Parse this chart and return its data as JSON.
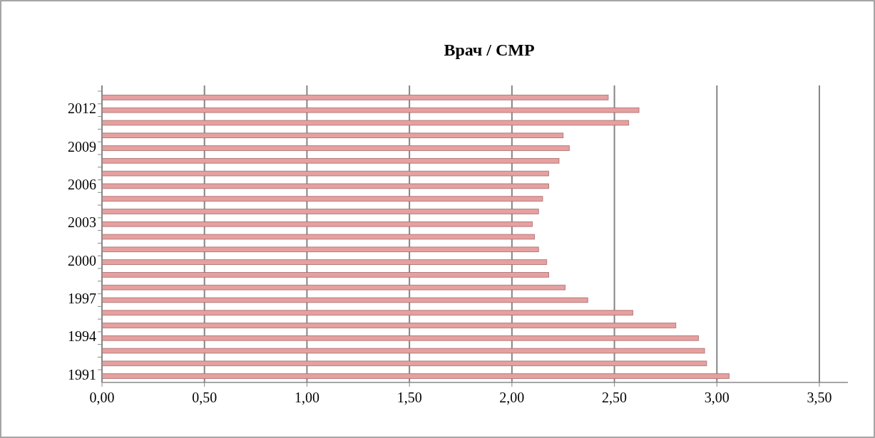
{
  "chart_data": {
    "type": "bar",
    "orientation": "horizontal",
    "title": "Врач / СМР",
    "categories": [
      null,
      "2012",
      null,
      null,
      "2009",
      null,
      null,
      "2006",
      null,
      null,
      "2003",
      null,
      null,
      "2000",
      null,
      null,
      "1997",
      null,
      null,
      "1994",
      null,
      null,
      "1991"
    ],
    "values": [
      2.47,
      2.62,
      2.57,
      2.25,
      2.28,
      2.23,
      2.18,
      2.18,
      2.15,
      2.13,
      2.1,
      2.11,
      2.13,
      2.17,
      2.18,
      2.26,
      2.37,
      2.59,
      2.8,
      2.91,
      2.94,
      2.95,
      3.06
    ],
    "color": "#e6a0a0",
    "xlim": [
      0,
      3.5
    ],
    "xticks": [
      {
        "value": 0,
        "label": "0,00"
      },
      {
        "value": 0.5,
        "label": "0,50"
      },
      {
        "value": 1,
        "label": "1,00"
      },
      {
        "value": 1.5,
        "label": "1,50"
      },
      {
        "value": 2,
        "label": "2,00"
      },
      {
        "value": 2.5,
        "label": "2,50"
      },
      {
        "value": 3,
        "label": "3,00"
      },
      {
        "value": 3.5,
        "label": "3,50"
      }
    ],
    "grid": "x"
  }
}
